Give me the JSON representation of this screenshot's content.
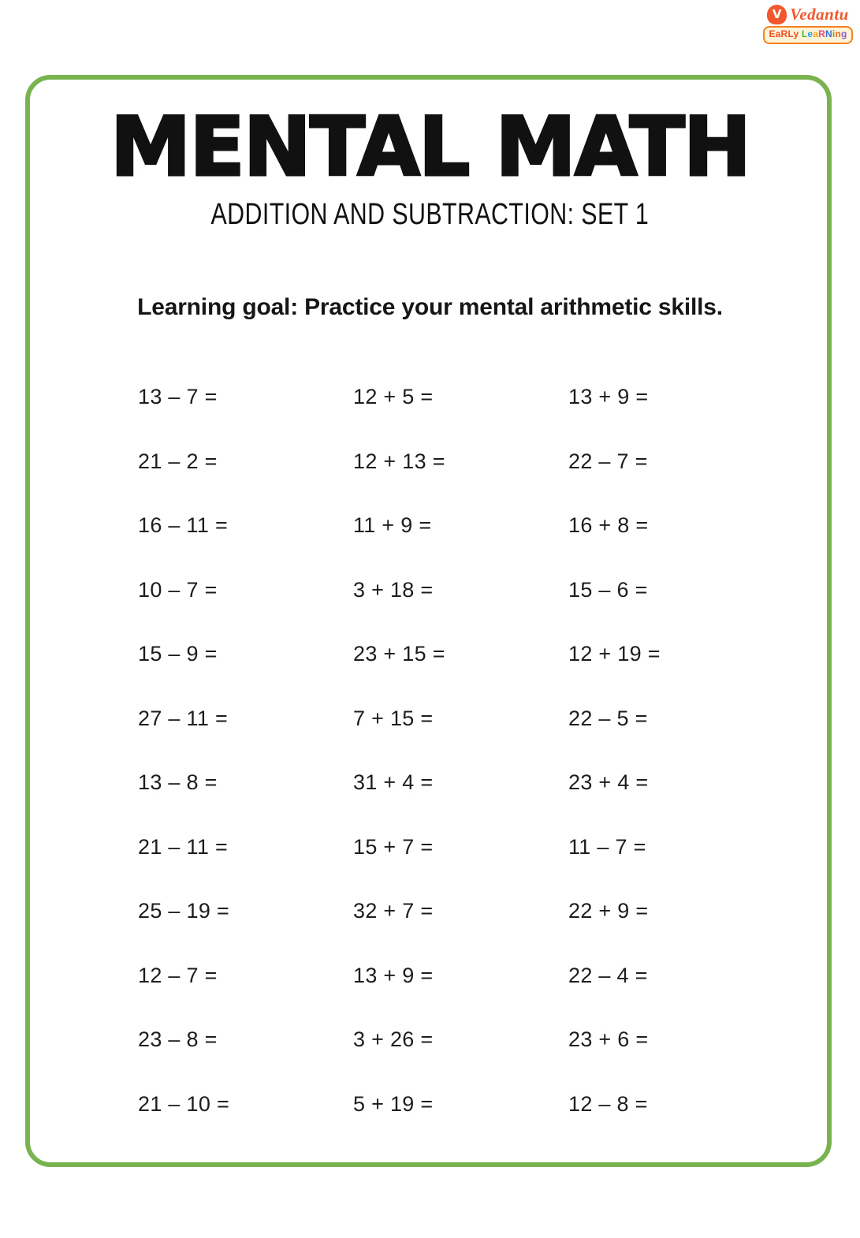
{
  "logo": {
    "brand": "Vedantu",
    "brand_color": "#f1582e",
    "v_icon_glyph": "V",
    "badge_word1": "EaRLy",
    "badge_word1_color": "#f04f23",
    "badge_word2": "LeaRNing",
    "badge_word2_colors": [
      "#4db748",
      "#2e9fe0",
      "#f5a623",
      "#ea4c89",
      "#3b6fd4",
      "#4db748",
      "#f26522",
      "#8e5bd8"
    ],
    "badge_border_color": "#f58220",
    "badge_background": "#fdf3d7"
  },
  "header": {
    "title": "MENTAL MATH",
    "subtitle": "ADDITION AND SUBTRACTION: SET 1"
  },
  "learning_goal": "Learning goal: Practice your mental arithmetic skills.",
  "worksheet": {
    "columns": 3,
    "rows": 12,
    "problems": [
      [
        "13 – 7 =",
        "12 + 5 =",
        "13 + 9 ="
      ],
      [
        "21 – 2 =",
        "12 + 13 =",
        "22 – 7 ="
      ],
      [
        "16 – 11 =",
        "11 + 9 =",
        "16 + 8 ="
      ],
      [
        "10 – 7 =",
        "3 + 18 =",
        "15 – 6 ="
      ],
      [
        "15 – 9 =",
        "23 + 15 =",
        "12 + 19 ="
      ],
      [
        "27 – 11 =",
        "7 + 15 =",
        "22 – 5 ="
      ],
      [
        "13 – 8 =",
        "31 + 4 =",
        "23 + 4 ="
      ],
      [
        "21 – 11 =",
        "15 + 7 =",
        "11 – 7 ="
      ],
      [
        "25 – 19 =",
        "32 + 7 =",
        "22 + 9 ="
      ],
      [
        "12 – 7 =",
        "13 + 9 =",
        "22 – 4 ="
      ],
      [
        "23 – 8 =",
        "3 + 26 =",
        "23 + 6 ="
      ],
      [
        "21 – 10 =",
        "5 + 19 =",
        "12 – 8 ="
      ]
    ]
  },
  "colors": {
    "frame_green": "#79b350",
    "text_dark": "#1d1d1f",
    "title_black": "#111111",
    "page_background": "#ffffff"
  }
}
